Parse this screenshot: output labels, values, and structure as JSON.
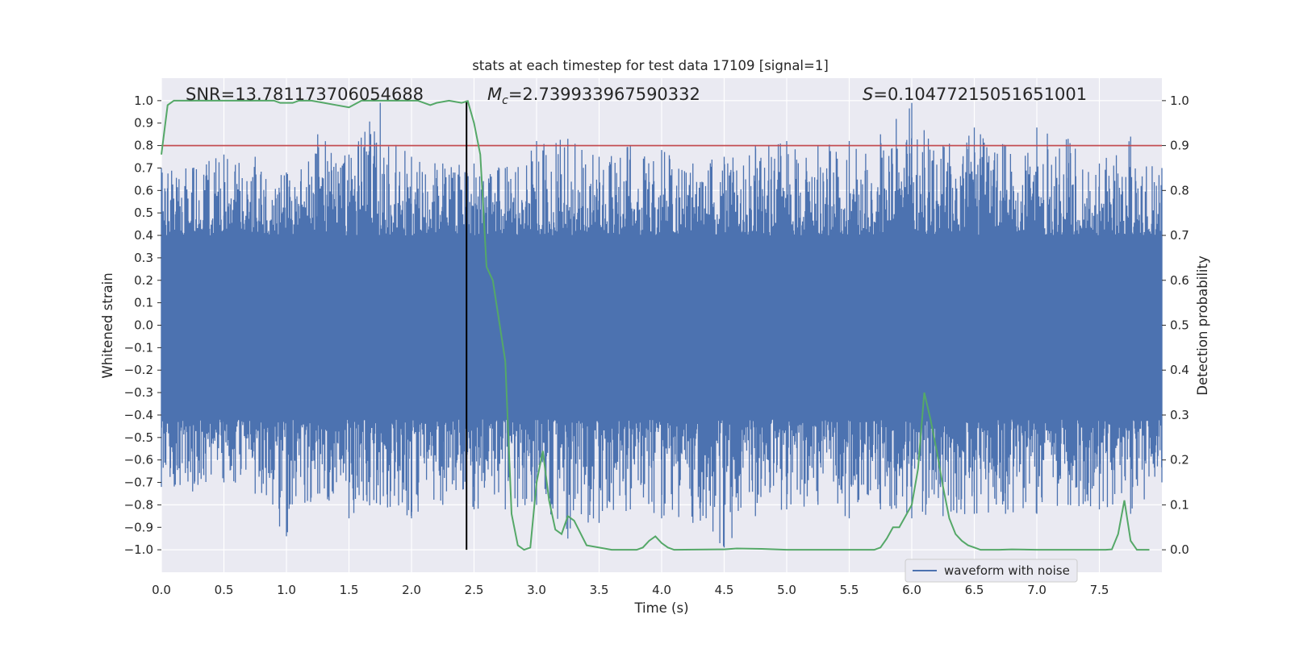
{
  "chart_data": {
    "type": "line",
    "title": "stats at each timestep for test data 17109 [signal=1]",
    "xlabel": "Time (s)",
    "ylabel_left": "Whitened strain",
    "ylabel_right": "Detection probability",
    "xlim": [
      0,
      8
    ],
    "ylim_left": [
      -1.1,
      1.1
    ],
    "ylim_right": [
      -0.05,
      1.05
    ],
    "x_ticks": [
      "0.0",
      "0.5",
      "1.0",
      "1.5",
      "2.0",
      "2.5",
      "3.0",
      "3.5",
      "4.0",
      "4.5",
      "5.0",
      "5.5",
      "6.0",
      "6.5",
      "7.0",
      "7.5"
    ],
    "y_left_ticks": [
      "1.0",
      "0.9",
      "0.8",
      "0.7",
      "0.6",
      "0.5",
      "0.4",
      "0.3",
      "0.2",
      "0.1",
      "0.0",
      "−0.1",
      "−0.2",
      "−0.3",
      "−0.4",
      "−0.5",
      "−0.6",
      "−0.7",
      "−0.8",
      "−0.9",
      "−1.0"
    ],
    "y_right_ticks": [
      "1.0",
      "0.9",
      "0.8",
      "0.7",
      "0.6",
      "0.5",
      "0.4",
      "0.3",
      "0.2",
      "0.1",
      "0.0"
    ],
    "grid": true,
    "legend_position": "lower-right",
    "annotations": {
      "snr": "SNR=13.781173706054688",
      "mc_symbol": "M",
      "mc_sub": "c",
      "mc_value": "=2.739933967590332",
      "s_symbol": "S",
      "s_value": "=0.10477215051651001"
    },
    "threshold_line": {
      "axis": "right",
      "value": 0.9,
      "color": "#c44e52"
    },
    "vertical_marker": {
      "x": 2.44,
      "color": "#000000"
    },
    "waveform": {
      "name": "waveform with noise",
      "color": "#4c72b0",
      "envelope": {
        "t": [
          0.0,
          0.25,
          0.5,
          0.75,
          1.0,
          1.25,
          1.5,
          1.75,
          2.0,
          2.25,
          2.5,
          2.75,
          3.0,
          3.25,
          3.5,
          3.75,
          4.0,
          4.25,
          4.5,
          4.75,
          5.0,
          5.25,
          5.5,
          5.75,
          6.0,
          6.25,
          6.5,
          6.75,
          7.0,
          7.25,
          7.5,
          7.75,
          8.0
        ],
        "max": [
          0.7,
          0.7,
          0.76,
          0.75,
          0.68,
          0.85,
          0.76,
          0.99,
          0.75,
          0.72,
          0.72,
          0.7,
          0.82,
          0.83,
          0.75,
          0.8,
          0.78,
          0.72,
          0.75,
          0.8,
          0.82,
          0.8,
          0.82,
          0.85,
          0.99,
          0.8,
          0.88,
          0.8,
          0.88,
          0.83,
          0.72,
          0.84,
          0.7
        ],
        "min": [
          -0.72,
          -0.74,
          -0.7,
          -0.75,
          -0.94,
          -0.75,
          -0.86,
          -0.8,
          -0.86,
          -0.8,
          -0.82,
          -0.82,
          -0.8,
          -0.95,
          -0.88,
          -0.82,
          -0.86,
          -0.88,
          -0.99,
          -0.85,
          -0.82,
          -0.8,
          -0.86,
          -0.82,
          -0.86,
          -0.85,
          -0.84,
          -0.84,
          -0.84,
          -0.8,
          -0.82,
          -0.84,
          -0.7
        ]
      }
    },
    "detection_probability": {
      "color": "#55a868",
      "t": [
        0.0,
        0.05,
        0.1,
        0.2,
        0.3,
        0.4,
        0.5,
        0.6,
        0.7,
        0.8,
        0.9,
        0.95,
        1.05,
        1.1,
        1.2,
        1.3,
        1.4,
        1.5,
        1.6,
        1.7,
        1.8,
        1.9,
        2.0,
        2.05,
        2.15,
        2.2,
        2.3,
        2.4,
        2.45,
        2.5,
        2.55,
        2.6,
        2.65,
        2.7,
        2.75,
        2.8,
        2.85,
        2.9,
        2.95,
        3.0,
        3.05,
        3.1,
        3.15,
        3.2,
        3.25,
        3.3,
        3.4,
        3.6,
        3.8,
        3.85,
        3.9,
        3.95,
        4.0,
        4.05,
        4.1,
        4.5,
        4.6,
        4.8,
        5.0,
        5.2,
        5.4,
        5.6,
        5.7,
        5.75,
        5.8,
        5.85,
        5.9,
        5.95,
        6.0,
        6.05,
        6.1,
        6.15,
        6.2,
        6.25,
        6.3,
        6.35,
        6.4,
        6.45,
        6.5,
        6.55,
        6.6,
        6.7,
        6.8,
        7.0,
        7.2,
        7.4,
        7.55,
        7.6,
        7.65,
        7.7,
        7.75,
        7.8,
        7.85,
        7.9
      ],
      "p": [
        0.88,
        0.99,
        1.0,
        1.0,
        1.0,
        1.0,
        1.0,
        1.0,
        1.0,
        1.0,
        1.0,
        0.995,
        0.995,
        1.0,
        1.0,
        0.995,
        0.99,
        0.985,
        1.0,
        1.0,
        1.0,
        1.0,
        1.0,
        1.0,
        0.99,
        0.995,
        1.0,
        0.995,
        0.999,
        0.95,
        0.88,
        0.63,
        0.6,
        0.51,
        0.42,
        0.08,
        0.01,
        0.0,
        0.005,
        0.15,
        0.22,
        0.11,
        0.045,
        0.035,
        0.075,
        0.065,
        0.01,
        0.0,
        0.0,
        0.005,
        0.02,
        0.03,
        0.015,
        0.005,
        0.0,
        0.001,
        0.003,
        0.002,
        0.0,
        0.0,
        0.0,
        0.0,
        0.0,
        0.005,
        0.025,
        0.05,
        0.05,
        0.075,
        0.1,
        0.18,
        0.35,
        0.29,
        0.22,
        0.14,
        0.07,
        0.035,
        0.02,
        0.01,
        0.005,
        0.0,
        0.0,
        0.0,
        0.001,
        0.0,
        0.0,
        0.0,
        0.0,
        0.001,
        0.035,
        0.11,
        0.02,
        0.0,
        0.0,
        0.0
      ]
    }
  }
}
